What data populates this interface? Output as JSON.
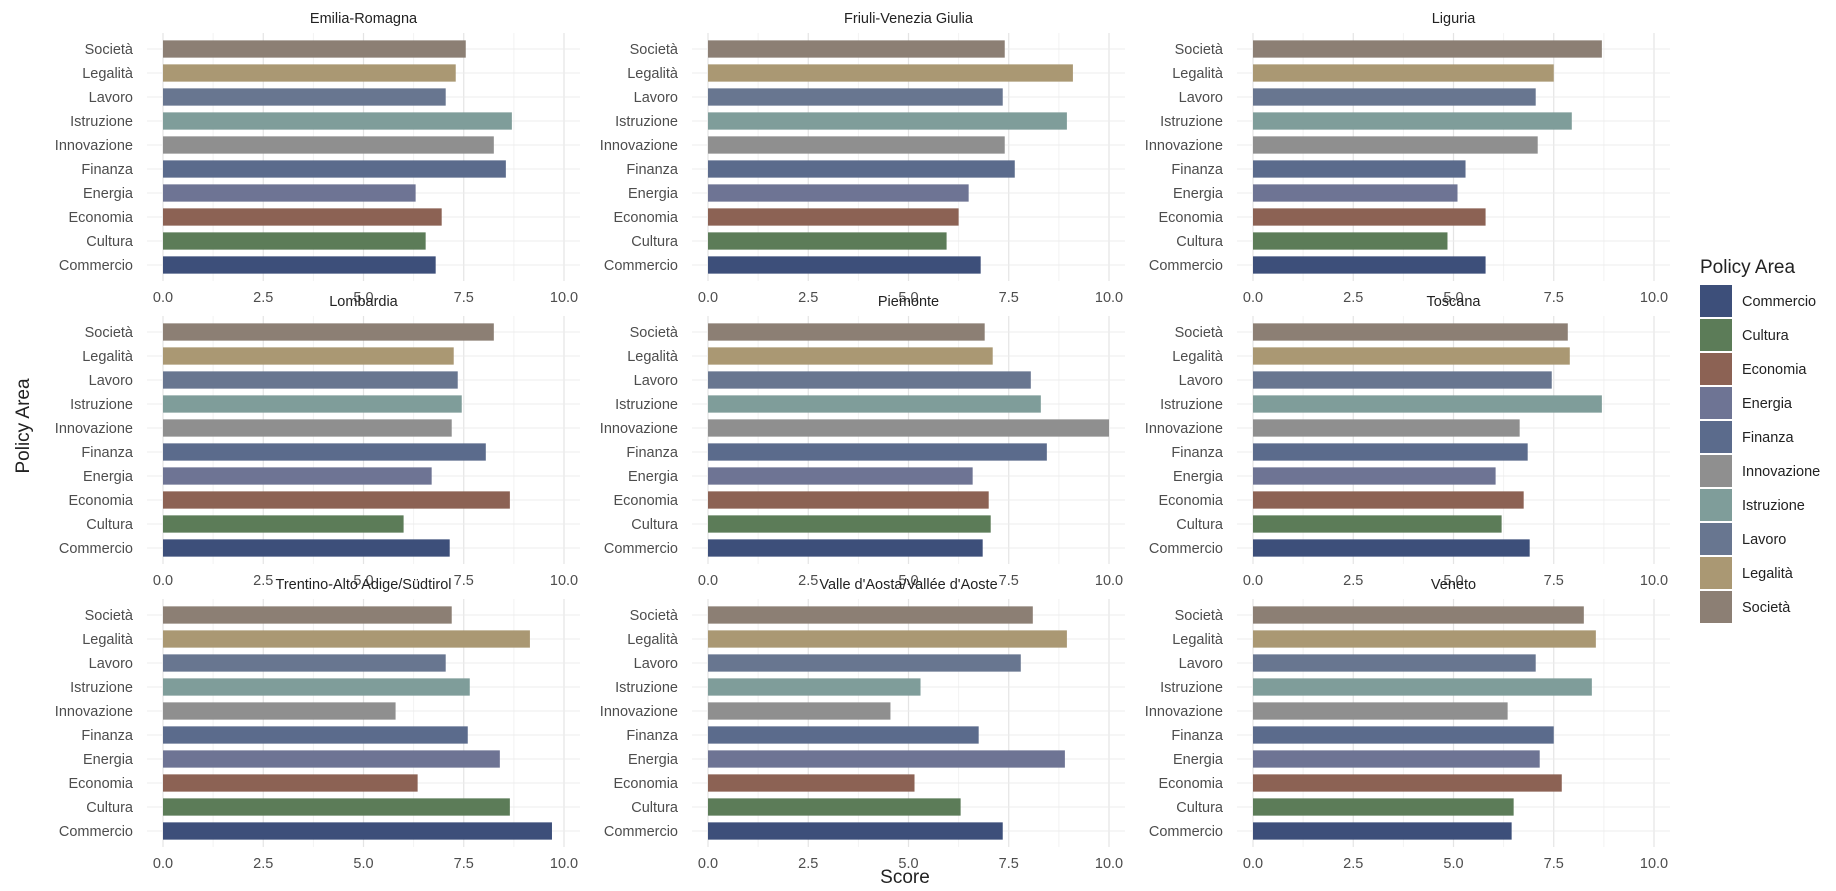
{
  "chart_data": {
    "type": "bar",
    "orientation": "horizontal",
    "facets": 9,
    "xlabel": "Score",
    "ylabel": "Policy Area",
    "xlim": [
      0,
      10
    ],
    "x_ticks": [
      "0.0",
      "2.5",
      "5.0",
      "7.5",
      "10.0"
    ],
    "x_tick_values": [
      0,
      2.5,
      5,
      7.5,
      10
    ],
    "grid": true,
    "legend": {
      "title": "Policy Area",
      "position": "right",
      "entries": [
        {
          "name": "Commercio",
          "color": "#3d4f7a"
        },
        {
          "name": "Cultura",
          "color": "#5c7c58"
        },
        {
          "name": "Economia",
          "color": "#8c6254"
        },
        {
          "name": "Energia",
          "color": "#6e7494"
        },
        {
          "name": "Finanza",
          "color": "#5b6b8c"
        },
        {
          "name": "Innovazione",
          "color": "#8f8f8f"
        },
        {
          "name": "Istruzione",
          "color": "#7f9d9a"
        },
        {
          "name": "Lavoro",
          "color": "#687690"
        },
        {
          "name": "Legalità",
          "color": "#aa9873"
        },
        {
          "name": "Società",
          "color": "#8c7f74"
        }
      ]
    },
    "panels": [
      {
        "title": "Emilia-Romagna",
        "values": {
          "Società": 7.55,
          "Legalità": 7.3,
          "Lavoro": 7.05,
          "Istruzione": 8.7,
          "Innovazione": 8.25,
          "Finanza": 8.55,
          "Energia": 6.3,
          "Economia": 6.95,
          "Cultura": 6.55,
          "Commercio": 6.8
        }
      },
      {
        "title": "Friuli-Venezia Giulia",
        "values": {
          "Società": 7.4,
          "Legalità": 9.1,
          "Lavoro": 7.35,
          "Istruzione": 8.95,
          "Innovazione": 7.4,
          "Finanza": 7.65,
          "Energia": 6.5,
          "Economia": 6.25,
          "Cultura": 5.95,
          "Commercio": 6.8
        }
      },
      {
        "title": "Liguria",
        "values": {
          "Società": 8.7,
          "Legalità": 7.5,
          "Lavoro": 7.05,
          "Istruzione": 7.95,
          "Innovazione": 7.1,
          "Finanza": 5.3,
          "Energia": 5.1,
          "Economia": 5.8,
          "Cultura": 4.85,
          "Commercio": 5.8
        }
      },
      {
        "title": "Lombardia",
        "values": {
          "Società": 8.25,
          "Legalità": 7.25,
          "Lavoro": 7.35,
          "Istruzione": 7.45,
          "Innovazione": 7.2,
          "Finanza": 8.05,
          "Energia": 6.7,
          "Economia": 8.65,
          "Cultura": 6.0,
          "Commercio": 7.15
        }
      },
      {
        "title": "Piemonte",
        "values": {
          "Società": 6.9,
          "Legalità": 7.1,
          "Lavoro": 8.05,
          "Istruzione": 8.3,
          "Innovazione": 10.0,
          "Finanza": 8.45,
          "Energia": 6.6,
          "Economia": 7.0,
          "Cultura": 7.05,
          "Commercio": 6.85
        }
      },
      {
        "title": "Toscana",
        "values": {
          "Società": 7.85,
          "Legalità": 7.9,
          "Lavoro": 7.45,
          "Istruzione": 8.7,
          "Innovazione": 6.65,
          "Finanza": 6.85,
          "Energia": 6.05,
          "Economia": 6.75,
          "Cultura": 6.2,
          "Commercio": 6.9
        }
      },
      {
        "title": "Trentino-Alto Adige/Südtirol",
        "values": {
          "Società": 7.2,
          "Legalità": 9.15,
          "Lavoro": 7.05,
          "Istruzione": 7.65,
          "Innovazione": 5.8,
          "Finanza": 7.6,
          "Energia": 8.4,
          "Economia": 6.35,
          "Cultura": 8.65,
          "Commercio": 9.7
        }
      },
      {
        "title": "Valle d'Aosta/Vallée d'Aoste",
        "values": {
          "Società": 8.1,
          "Legalità": 8.95,
          "Lavoro": 7.8,
          "Istruzione": 5.3,
          "Innovazione": 4.55,
          "Finanza": 6.75,
          "Energia": 8.9,
          "Economia": 5.15,
          "Cultura": 6.3,
          "Commercio": 7.35
        }
      },
      {
        "title": "Veneto",
        "values": {
          "Società": 8.25,
          "Legalità": 8.55,
          "Lavoro": 7.05,
          "Istruzione": 8.45,
          "Innovazione": 6.35,
          "Finanza": 7.5,
          "Energia": 7.15,
          "Economia": 7.7,
          "Cultura": 6.5,
          "Commercio": 6.45
        }
      }
    ]
  }
}
